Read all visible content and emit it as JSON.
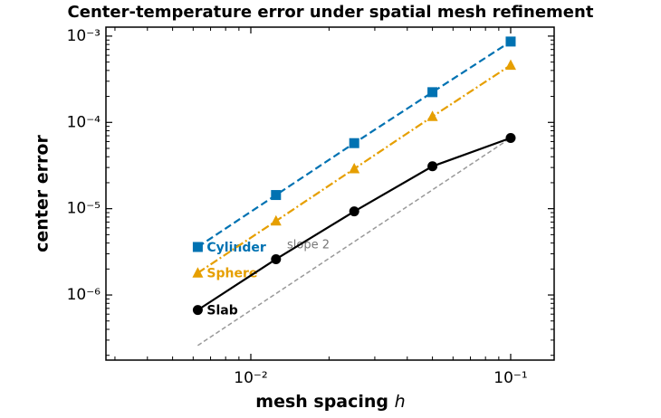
{
  "chart_data": {
    "type": "line",
    "title": "Center-temperature error under spatial mesh refinement",
    "xlabel": "mesh spacing",
    "xlabel_symbol": "h",
    "ylabel": "center error",
    "xscale": "log",
    "yscale": "log",
    "xlim": [
      0.00277,
      0.147
    ],
    "ylim": [
      1.76e-07,
      0.00127
    ],
    "xticks": [
      {
        "value": 0.01,
        "label": "10⁻²"
      },
      {
        "value": 0.1,
        "label": "10⁻¹"
      }
    ],
    "yticks": [
      {
        "value": 1e-06,
        "label": "10⁻⁶"
      },
      {
        "value": 1e-05,
        "label": "10⁻⁵"
      },
      {
        "value": 0.0001,
        "label": "10⁻⁴"
      },
      {
        "value": 0.001,
        "label": "10⁻³"
      }
    ],
    "xminorticks": [
      0.003,
      0.004,
      0.005,
      0.006,
      0.007,
      0.008,
      0.009,
      0.02,
      0.03,
      0.04,
      0.05,
      0.06,
      0.07,
      0.08,
      0.09
    ],
    "yminorticks": [
      2e-07,
      3e-07,
      4e-07,
      5e-07,
      6e-07,
      7e-07,
      8e-07,
      9e-07,
      2e-06,
      3e-06,
      4e-06,
      5e-06,
      6e-06,
      7e-06,
      8e-06,
      9e-06,
      2e-05,
      3e-05,
      4e-05,
      5e-05,
      6e-05,
      7e-05,
      8e-05,
      9e-05,
      0.0002,
      0.0003,
      0.0004,
      0.0005,
      0.0006,
      0.0007,
      0.0008,
      0.0009
    ],
    "x": [
      0.00625,
      0.0125,
      0.025,
      0.05,
      0.1
    ],
    "series": [
      {
        "name": "Cylinder",
        "color": "#0072b2",
        "dash": "8 4",
        "marker": "square",
        "values": [
          3.6e-06,
          1.44e-05,
          5.75e-05,
          0.000224,
          0.000865
        ]
      },
      {
        "name": "Sphere",
        "color": "#e69f00",
        "dash": "9 3 2 3",
        "marker": "triangle",
        "values": [
          1.8e-06,
          7.2e-06,
          2.9e-05,
          0.000117,
          0.00046
        ]
      },
      {
        "name": "Slab",
        "color": "#000000",
        "dash": "none",
        "marker": "circle",
        "values": [
          6.7e-07,
          2.6e-06,
          9.3e-06,
          3.1e-05,
          6.6e-05
        ]
      }
    ],
    "reference": {
      "label": "slope 2",
      "color": "#999999",
      "x": [
        0.00625,
        0.1
      ],
      "values": [
        2.6e-07,
        6.6e-05
      ]
    }
  }
}
